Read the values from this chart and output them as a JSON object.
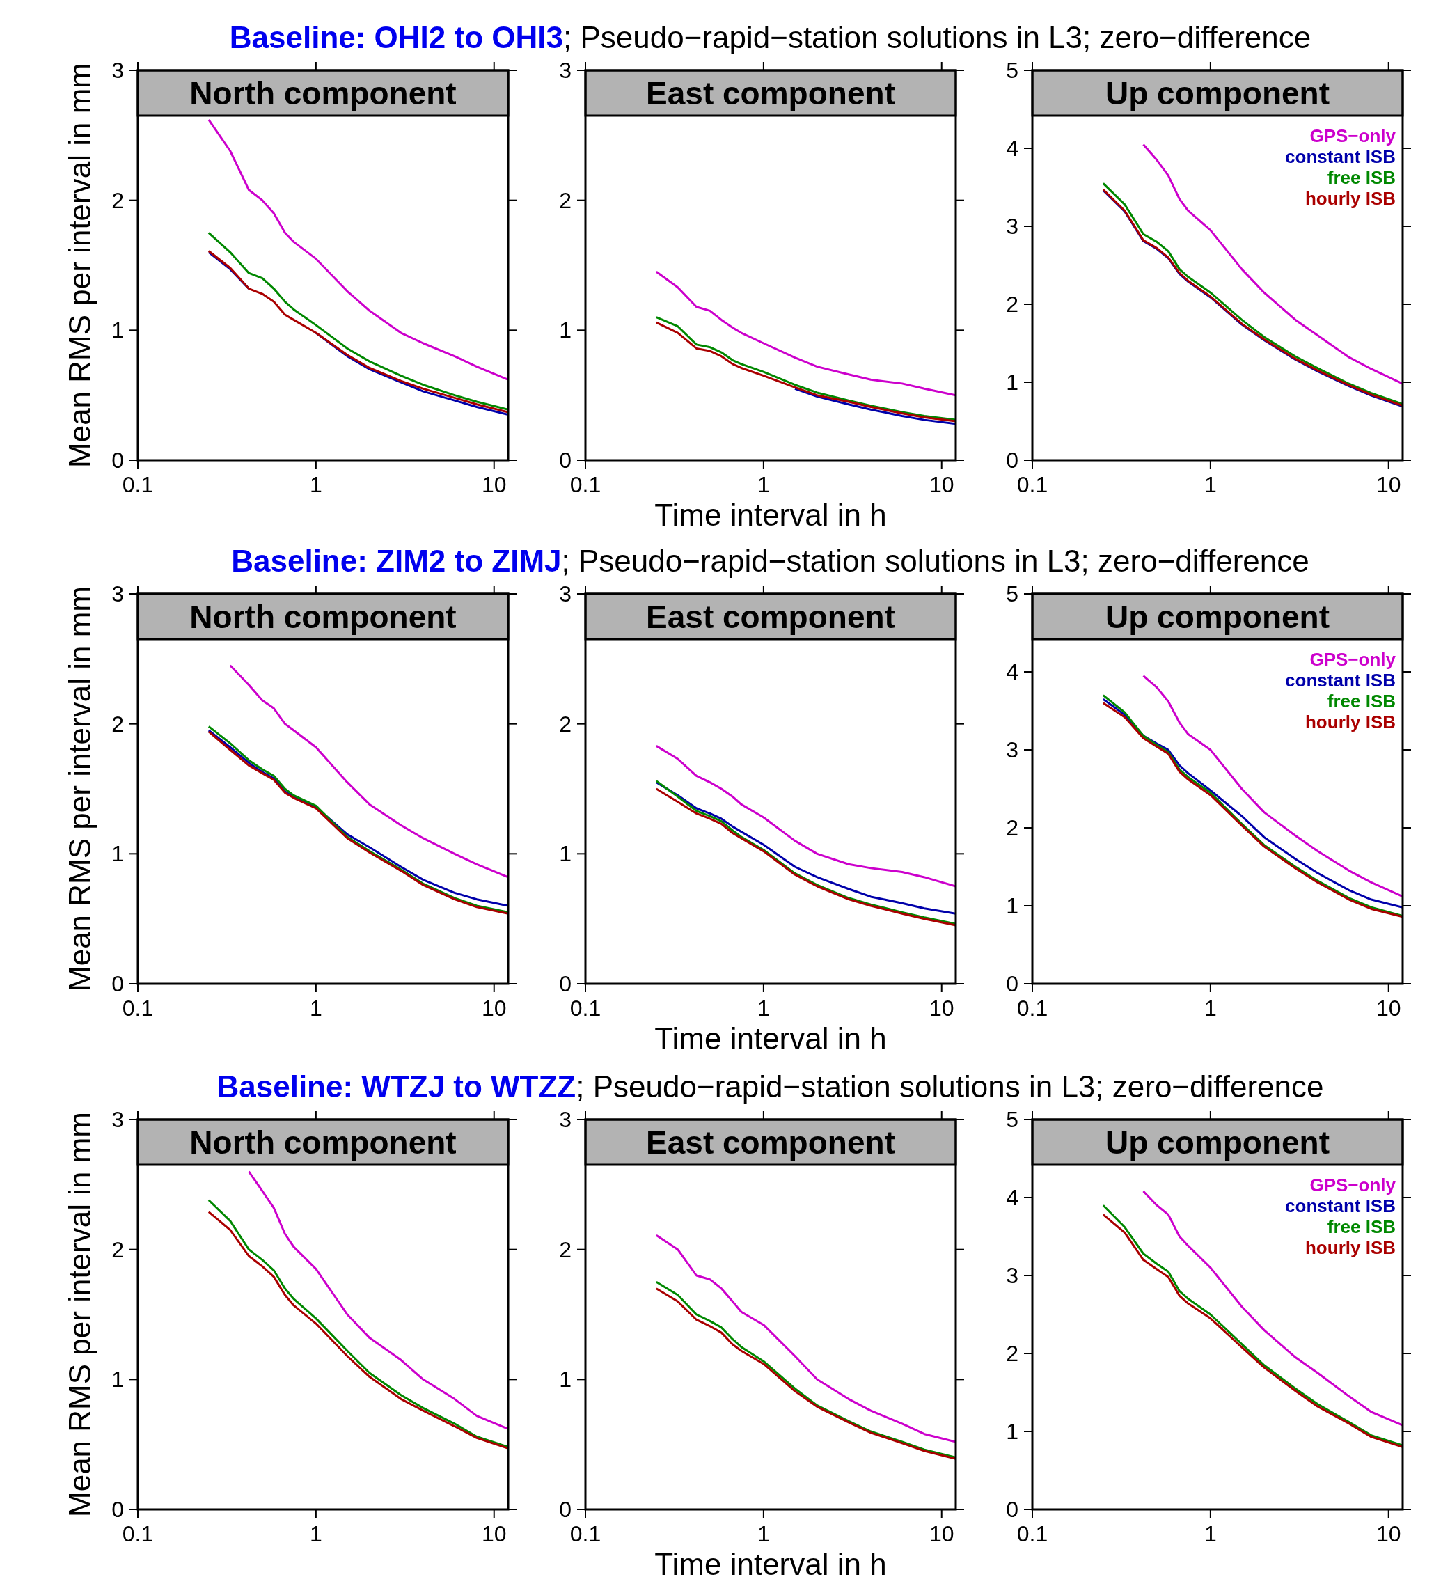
{
  "chart_data": [
    {
      "type": "line",
      "title": "North component",
      "subtitle": "Baseline: OHI2 to OHI3; Pseudo−rapid−station solutions in L3; zero−difference",
      "ylabel": "Mean RMS per interval in mm",
      "log": "x",
      "xlim": [
        0.1,
        12
      ],
      "xticks": [
        0.1,
        1,
        10
      ],
      "ylim": [
        0,
        3
      ],
      "yticks": [
        0,
        1,
        2,
        3
      ],
      "legend": false,
      "x": [
        0.25,
        0.33,
        0.42,
        0.5,
        0.58,
        0.67,
        0.75,
        1,
        1.5,
        2,
        3,
        4,
        6,
        8,
        12
      ],
      "series": [
        {
          "color": "#cc00cc",
          "values": [
            2.62,
            2.38,
            2.08,
            2.0,
            1.9,
            1.75,
            1.68,
            1.55,
            1.3,
            1.15,
            0.98,
            0.9,
            0.8,
            0.72,
            0.62
          ]
        },
        {
          "color": "#0000aa",
          "values": [
            1.6,
            1.47,
            1.32,
            null,
            null,
            null,
            null,
            0.98,
            0.8,
            0.7,
            0.6,
            0.53,
            0.46,
            0.41,
            0.35
          ]
        },
        {
          "color": "#008800",
          "values": [
            1.75,
            1.6,
            1.44,
            1.4,
            1.32,
            1.22,
            1.16,
            1.04,
            0.86,
            0.76,
            0.65,
            0.58,
            0.5,
            0.45,
            0.39
          ]
        },
        {
          "color": "#aa0000",
          "values": [
            1.61,
            1.48,
            1.32,
            1.28,
            1.22,
            1.12,
            1.08,
            0.98,
            0.81,
            0.71,
            0.61,
            0.55,
            0.48,
            0.43,
            0.37
          ]
        }
      ]
    },
    {
      "type": "line",
      "title": "East component",
      "xlabel": "Time interval in h",
      "log": "x",
      "xlim": [
        0.1,
        12
      ],
      "xticks": [
        0.1,
        1,
        10
      ],
      "ylim": [
        0,
        3
      ],
      "yticks": [
        0,
        1,
        2,
        3
      ],
      "legend": false,
      "x": [
        0.25,
        0.33,
        0.42,
        0.5,
        0.58,
        0.67,
        0.75,
        1,
        1.5,
        2,
        3,
        4,
        6,
        8,
        12
      ],
      "series": [
        {
          "color": "#cc00cc",
          "values": [
            1.45,
            1.33,
            1.18,
            1.15,
            1.08,
            1.02,
            0.98,
            0.9,
            0.79,
            0.72,
            0.66,
            0.62,
            0.59,
            0.55,
            0.5
          ]
        },
        {
          "color": "#0000aa",
          "values": [
            null,
            null,
            null,
            null,
            null,
            null,
            null,
            null,
            0.55,
            0.49,
            0.43,
            0.39,
            0.34,
            0.31,
            0.28
          ]
        },
        {
          "color": "#008800",
          "values": [
            1.1,
            1.03,
            0.89,
            0.87,
            0.83,
            0.77,
            0.74,
            0.68,
            0.58,
            0.52,
            0.46,
            0.42,
            0.37,
            0.34,
            0.31
          ]
        },
        {
          "color": "#aa0000",
          "values": [
            1.06,
            0.98,
            0.86,
            0.84,
            0.8,
            0.74,
            0.71,
            0.65,
            0.56,
            0.5,
            0.45,
            0.41,
            0.36,
            0.33,
            0.3
          ]
        }
      ]
    },
    {
      "type": "line",
      "title": "Up component",
      "log": "x",
      "xlim": [
        0.1,
        12
      ],
      "xticks": [
        0.1,
        1,
        10
      ],
      "ylim": [
        0,
        5
      ],
      "yticks": [
        0,
        1,
        2,
        3,
        4,
        5
      ],
      "legend": "top right",
      "x": [
        0.25,
        0.33,
        0.42,
        0.5,
        0.58,
        0.67,
        0.75,
        1,
        1.5,
        2,
        3,
        4,
        6,
        8,
        12
      ],
      "series": [
        {
          "name": "GPS−only",
          "color": "#cc00cc",
          "values": [
            null,
            null,
            4.05,
            3.85,
            3.65,
            3.35,
            3.2,
            2.95,
            2.45,
            2.15,
            1.8,
            1.6,
            1.32,
            1.17,
            0.98
          ]
        },
        {
          "name": "constant ISB",
          "color": "#0000aa",
          "values": [
            3.46,
            3.19,
            2.81,
            2.71,
            2.59,
            2.39,
            2.29,
            2.09,
            1.74,
            1.54,
            1.29,
            1.14,
            0.95,
            0.83,
            0.69
          ]
        },
        {
          "name": "free ISB",
          "color": "#008800",
          "values": [
            3.55,
            3.28,
            2.9,
            2.8,
            2.68,
            2.45,
            2.35,
            2.15,
            1.8,
            1.58,
            1.33,
            1.18,
            0.98,
            0.86,
            0.72
          ]
        },
        {
          "name": "hourly ISB",
          "color": "#aa0000",
          "values": [
            3.47,
            3.2,
            2.82,
            2.72,
            2.6,
            2.4,
            2.3,
            2.1,
            1.75,
            1.55,
            1.3,
            1.15,
            0.96,
            0.84,
            0.7
          ]
        }
      ]
    },
    {
      "type": "line",
      "title": "North component",
      "subtitle": "Baseline: ZIM2 to ZIMJ; Pseudo−rapid−station solutions in L3; zero−difference",
      "ylabel": "Mean RMS per interval in mm",
      "log": "x",
      "xlim": [
        0.1,
        12
      ],
      "xticks": [
        0.1,
        1,
        10
      ],
      "ylim": [
        0,
        3
      ],
      "yticks": [
        0,
        1,
        2,
        3
      ],
      "legend": false,
      "x": [
        0.25,
        0.33,
        0.42,
        0.5,
        0.58,
        0.67,
        0.75,
        1,
        1.5,
        2,
        3,
        4,
        6,
        8,
        12
      ],
      "series": [
        {
          "color": "#cc00cc",
          "values": [
            null,
            2.45,
            2.3,
            2.18,
            2.12,
            2.0,
            1.95,
            1.82,
            1.55,
            1.38,
            1.22,
            1.12,
            1.0,
            0.92,
            0.82
          ]
        },
        {
          "color": "#0000aa",
          "values": [
            1.95,
            1.82,
            1.7,
            1.63,
            1.58,
            1.48,
            1.44,
            1.36,
            1.15,
            1.05,
            0.9,
            0.8,
            0.7,
            0.65,
            0.6
          ]
        },
        {
          "color": "#008800",
          "values": [
            1.98,
            1.85,
            1.72,
            1.65,
            1.6,
            1.5,
            1.45,
            1.37,
            1.13,
            1.02,
            0.88,
            0.77,
            0.66,
            0.6,
            0.55
          ]
        },
        {
          "color": "#aa0000",
          "values": [
            1.94,
            1.8,
            1.68,
            1.62,
            1.57,
            1.47,
            1.43,
            1.35,
            1.12,
            1.01,
            0.87,
            0.76,
            0.65,
            0.59,
            0.54
          ]
        }
      ]
    },
    {
      "type": "line",
      "title": "East component",
      "xlabel": "Time interval in h",
      "log": "x",
      "xlim": [
        0.1,
        12
      ],
      "xticks": [
        0.1,
        1,
        10
      ],
      "ylim": [
        0,
        3
      ],
      "yticks": [
        0,
        1,
        2,
        3
      ],
      "legend": false,
      "x": [
        0.25,
        0.33,
        0.42,
        0.5,
        0.58,
        0.67,
        0.75,
        1,
        1.5,
        2,
        3,
        4,
        6,
        8,
        12
      ],
      "series": [
        {
          "color": "#cc00cc",
          "values": [
            1.83,
            1.73,
            1.6,
            1.55,
            1.5,
            1.44,
            1.38,
            1.28,
            1.1,
            1.0,
            0.92,
            0.89,
            0.86,
            0.82,
            0.75
          ]
        },
        {
          "color": "#0000aa",
          "values": [
            1.55,
            1.45,
            1.35,
            1.31,
            1.27,
            1.21,
            1.17,
            1.07,
            0.9,
            0.82,
            0.73,
            0.67,
            0.62,
            0.58,
            0.54
          ]
        },
        {
          "color": "#008800",
          "values": [
            1.56,
            1.44,
            1.33,
            1.29,
            1.25,
            1.18,
            1.13,
            1.03,
            0.85,
            0.76,
            0.66,
            0.61,
            0.55,
            0.51,
            0.46
          ]
        },
        {
          "color": "#aa0000",
          "values": [
            1.5,
            1.4,
            1.31,
            1.27,
            1.23,
            1.16,
            1.12,
            1.02,
            0.84,
            0.75,
            0.65,
            0.6,
            0.54,
            0.5,
            0.45
          ]
        }
      ]
    },
    {
      "type": "line",
      "title": "Up component",
      "log": "x",
      "xlim": [
        0.1,
        12
      ],
      "xticks": [
        0.1,
        1,
        10
      ],
      "ylim": [
        0,
        5
      ],
      "yticks": [
        0,
        1,
        2,
        3,
        4,
        5
      ],
      "legend": "top right",
      "x": [
        0.25,
        0.33,
        0.42,
        0.5,
        0.58,
        0.67,
        0.75,
        1,
        1.5,
        2,
        3,
        4,
        6,
        8,
        12
      ],
      "series": [
        {
          "name": "GPS−only",
          "color": "#cc00cc",
          "values": [
            null,
            null,
            3.95,
            3.8,
            3.62,
            3.35,
            3.2,
            3.0,
            2.5,
            2.2,
            1.9,
            1.7,
            1.45,
            1.3,
            1.12
          ]
        },
        {
          "name": "constant ISB",
          "color": "#0000aa",
          "values": [
            3.65,
            3.45,
            3.18,
            3.08,
            3.0,
            2.8,
            2.7,
            2.48,
            2.15,
            1.88,
            1.6,
            1.42,
            1.2,
            1.08,
            0.98
          ]
        },
        {
          "name": "free ISB",
          "color": "#008800",
          "values": [
            3.7,
            3.48,
            3.18,
            3.06,
            2.97,
            2.75,
            2.65,
            2.45,
            2.05,
            1.78,
            1.5,
            1.32,
            1.1,
            0.98,
            0.87
          ]
        },
        {
          "name": "hourly ISB",
          "color": "#aa0000",
          "values": [
            3.6,
            3.42,
            3.15,
            3.04,
            2.95,
            2.72,
            2.62,
            2.42,
            2.03,
            1.76,
            1.48,
            1.3,
            1.08,
            0.96,
            0.86
          ]
        }
      ]
    },
    {
      "type": "line",
      "title": "North component",
      "subtitle": "Baseline: WTZJ to WTZZ; Pseudo−rapid−station solutions in L3; zero−difference",
      "ylabel": "Mean RMS per interval in mm",
      "log": "x",
      "xlim": [
        0.1,
        12
      ],
      "xticks": [
        0.1,
        1,
        10
      ],
      "ylim": [
        0,
        3
      ],
      "yticks": [
        0,
        1,
        2,
        3
      ],
      "legend": false,
      "x": [
        0.25,
        0.33,
        0.42,
        0.5,
        0.58,
        0.67,
        0.75,
        1,
        1.5,
        2,
        3,
        4,
        6,
        8,
        12
      ],
      "series": [
        {
          "color": "#cc00cc",
          "values": [
            null,
            null,
            2.6,
            2.45,
            2.32,
            2.12,
            2.02,
            1.85,
            1.5,
            1.32,
            1.15,
            1.0,
            0.85,
            0.72,
            0.62
          ]
        },
        {
          "color": "#0000aa",
          "values": [
            null,
            null,
            null,
            null,
            null,
            null,
            null,
            null,
            null,
            null,
            null,
            null,
            null,
            null,
            null
          ]
        },
        {
          "color": "#008800",
          "values": [
            2.38,
            2.22,
            2.0,
            1.92,
            1.84,
            1.7,
            1.62,
            1.47,
            1.22,
            1.05,
            0.88,
            0.78,
            0.66,
            0.56,
            0.48
          ]
        },
        {
          "color": "#aa0000",
          "values": [
            2.29,
            2.15,
            1.95,
            1.87,
            1.79,
            1.65,
            1.57,
            1.43,
            1.18,
            1.02,
            0.85,
            0.76,
            0.64,
            0.55,
            0.47
          ]
        }
      ]
    },
    {
      "type": "line",
      "title": "East component",
      "xlabel": "Time interval in h",
      "log": "x",
      "xlim": [
        0.1,
        12
      ],
      "xticks": [
        0.1,
        1,
        10
      ],
      "ylim": [
        0,
        3
      ],
      "yticks": [
        0,
        1,
        2,
        3
      ],
      "legend": false,
      "x": [
        0.25,
        0.33,
        0.42,
        0.5,
        0.58,
        0.67,
        0.75,
        1,
        1.5,
        2,
        3,
        4,
        6,
        8,
        12
      ],
      "series": [
        {
          "color": "#cc00cc",
          "values": [
            2.11,
            2.0,
            1.8,
            1.77,
            1.7,
            1.6,
            1.52,
            1.42,
            1.18,
            1.0,
            0.85,
            0.76,
            0.66,
            0.58,
            0.52
          ]
        },
        {
          "color": "#0000aa",
          "values": [
            null,
            null,
            null,
            null,
            null,
            null,
            null,
            null,
            null,
            null,
            null,
            null,
            null,
            null,
            null
          ]
        },
        {
          "color": "#008800",
          "values": [
            1.75,
            1.65,
            1.5,
            1.45,
            1.4,
            1.31,
            1.25,
            1.14,
            0.93,
            0.8,
            0.68,
            0.6,
            0.52,
            0.46,
            0.4
          ]
        },
        {
          "color": "#aa0000",
          "values": [
            1.7,
            1.6,
            1.46,
            1.41,
            1.36,
            1.27,
            1.22,
            1.12,
            0.91,
            0.79,
            0.67,
            0.59,
            0.51,
            0.45,
            0.39
          ]
        }
      ]
    },
    {
      "type": "line",
      "title": "Up component",
      "log": "x",
      "xlim": [
        0.1,
        12
      ],
      "xticks": [
        0.1,
        1,
        10
      ],
      "ylim": [
        0,
        5
      ],
      "yticks": [
        0,
        1,
        2,
        3,
        4,
        5
      ],
      "legend": "top right",
      "x": [
        0.25,
        0.33,
        0.42,
        0.5,
        0.58,
        0.67,
        0.75,
        1,
        1.5,
        2,
        3,
        4,
        6,
        8,
        12
      ],
      "series": [
        {
          "name": "GPS−only",
          "color": "#cc00cc",
          "values": [
            null,
            null,
            4.08,
            3.9,
            3.78,
            3.5,
            3.38,
            3.1,
            2.6,
            2.3,
            1.95,
            1.75,
            1.45,
            1.25,
            1.08
          ]
        },
        {
          "name": "constant ISB",
          "color": "#0000aa",
          "values": [
            null,
            null,
            null,
            null,
            null,
            null,
            null,
            null,
            null,
            null,
            null,
            null,
            null,
            null,
            null
          ]
        },
        {
          "name": "free ISB",
          "color": "#008800",
          "values": [
            3.9,
            3.62,
            3.28,
            3.15,
            3.05,
            2.8,
            2.7,
            2.5,
            2.12,
            1.85,
            1.55,
            1.35,
            1.12,
            0.95,
            0.82
          ]
        },
        {
          "name": "hourly ISB",
          "color": "#aa0000",
          "values": [
            3.78,
            3.55,
            3.2,
            3.08,
            2.98,
            2.74,
            2.64,
            2.45,
            2.08,
            1.82,
            1.52,
            1.32,
            1.1,
            0.93,
            0.8
          ]
        }
      ]
    }
  ]
}
